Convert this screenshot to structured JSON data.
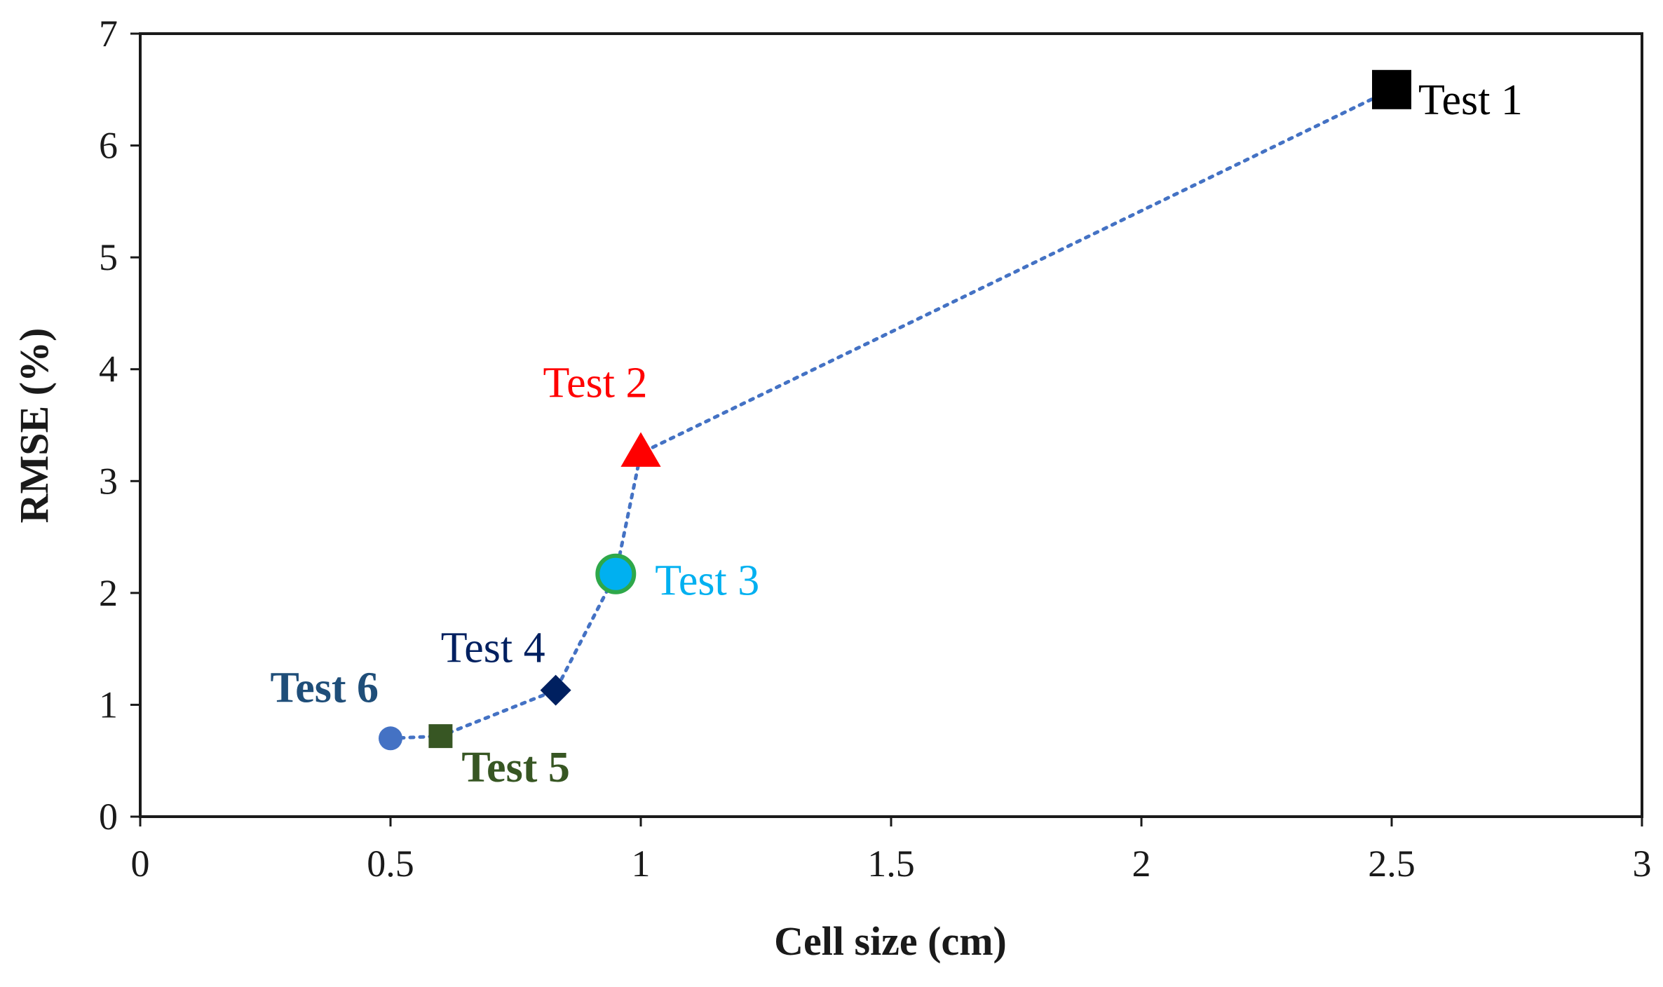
{
  "chart_data": {
    "type": "scatter",
    "title": "",
    "xlabel": "Cell size (cm)",
    "ylabel": "RMSE (%)",
    "xlim": [
      0,
      3
    ],
    "ylim": [
      0,
      7
    ],
    "xticks": [
      "0",
      "0.5",
      "1",
      "1.5",
      "2",
      "2.5",
      "3"
    ],
    "xtick_values": [
      0,
      0.5,
      1,
      1.5,
      2,
      2.5,
      3
    ],
    "yticks": [
      "0",
      "1",
      "2",
      "3",
      "4",
      "5",
      "6",
      "7"
    ],
    "ytick_values": [
      0,
      1,
      2,
      3,
      4,
      5,
      6,
      7
    ],
    "grid": false,
    "legend": "none",
    "line": {
      "style": "dotted",
      "color": "#4472C4",
      "order": [
        "Test 6",
        "Test 5",
        "Test 4",
        "Test 3",
        "Test 2",
        "Test 1"
      ]
    },
    "points": [
      {
        "name": "Test 1",
        "x": 2.5,
        "y": 6.5,
        "marker": "square",
        "color": "#000000",
        "label_color": "#000000",
        "label_bold": false,
        "label_pos": "right"
      },
      {
        "name": "Test 2",
        "x": 1.0,
        "y": 3.25,
        "marker": "triangle",
        "color": "#FF0000",
        "label_color": "#FF0000",
        "label_bold": false,
        "label_pos": "top"
      },
      {
        "name": "Test 3",
        "x": 0.95,
        "y": 2.17,
        "marker": "circle",
        "color": "#00B0F0",
        "stroke": "#2EA84A",
        "label_color": "#00B0F0",
        "label_bold": false,
        "label_pos": "right"
      },
      {
        "name": "Test 4",
        "x": 0.83,
        "y": 1.13,
        "marker": "diamond",
        "color": "#002060",
        "label_color": "#002060",
        "label_bold": false,
        "label_pos": "top-left"
      },
      {
        "name": "Test 5",
        "x": 0.6,
        "y": 0.72,
        "marker": "square",
        "color": "#375623",
        "label_color": "#375623",
        "label_bold": true,
        "label_pos": "bottom-right"
      },
      {
        "name": "Test 6",
        "x": 0.5,
        "y": 0.7,
        "marker": "circle",
        "color": "#4472C4",
        "label_color": "#1F4E79",
        "label_bold": true,
        "label_pos": "top-left"
      }
    ]
  }
}
